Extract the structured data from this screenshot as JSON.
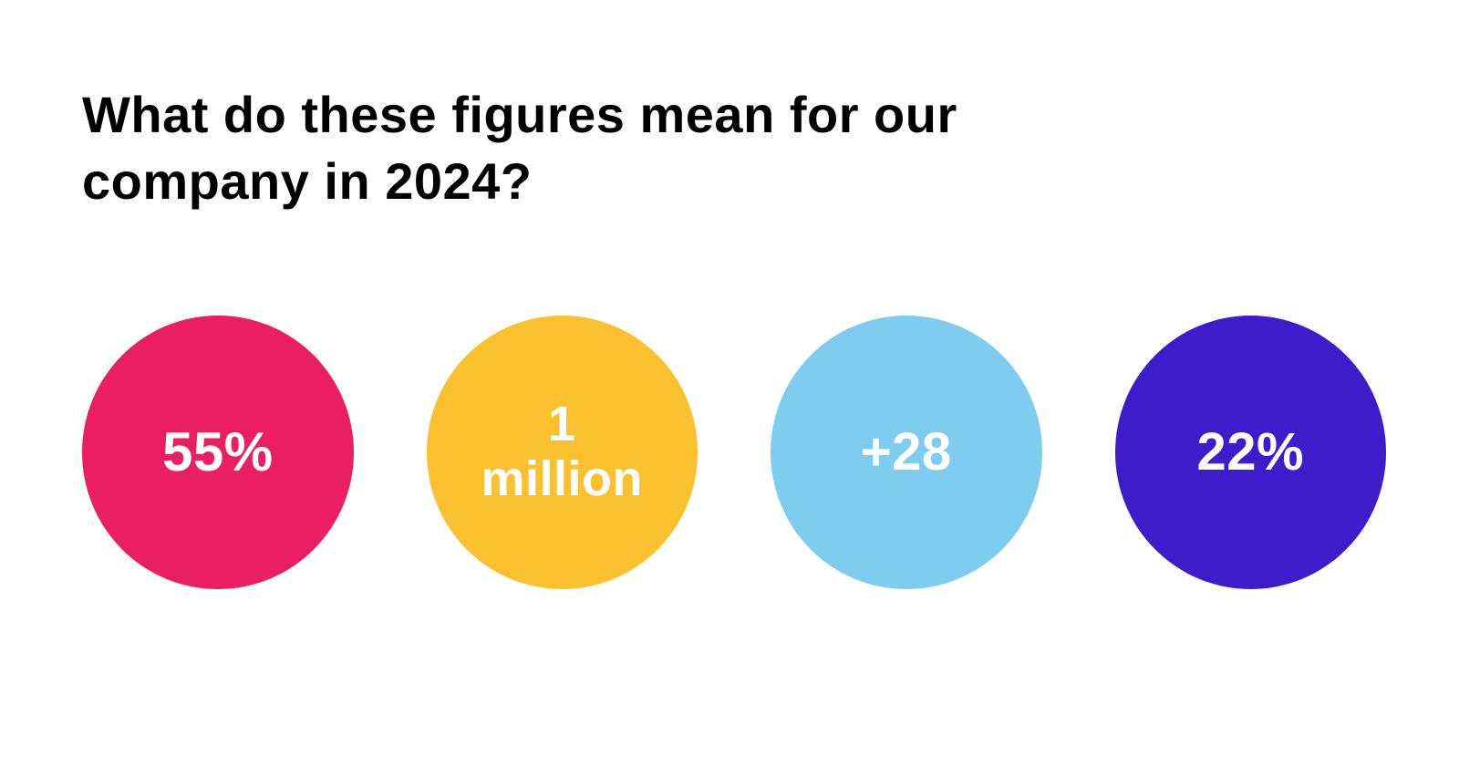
{
  "title": "What do these figures mean for our company in 2024?",
  "title_fontsize": 56,
  "title_color": "#000000",
  "background_color": "#ffffff",
  "circles": [
    {
      "text": "55%",
      "color": "#e91e63",
      "text_color": "#ffffff",
      "fontsize": 60,
      "diameter": 300
    },
    {
      "text": "1\nmillion",
      "color": "#fbc02d",
      "text_color": "#ffffff",
      "fontsize": 54,
      "diameter": 300
    },
    {
      "text": "+28",
      "color": "#7ecdf0",
      "text_color": "#ffffff",
      "fontsize": 58,
      "diameter": 300
    },
    {
      "text": "22%",
      "color": "#3d1dcb",
      "text_color": "#ffffff",
      "fontsize": 58,
      "diameter": 300
    }
  ],
  "layout": {
    "circle_gap": 80,
    "row_direction": "horizontal"
  }
}
